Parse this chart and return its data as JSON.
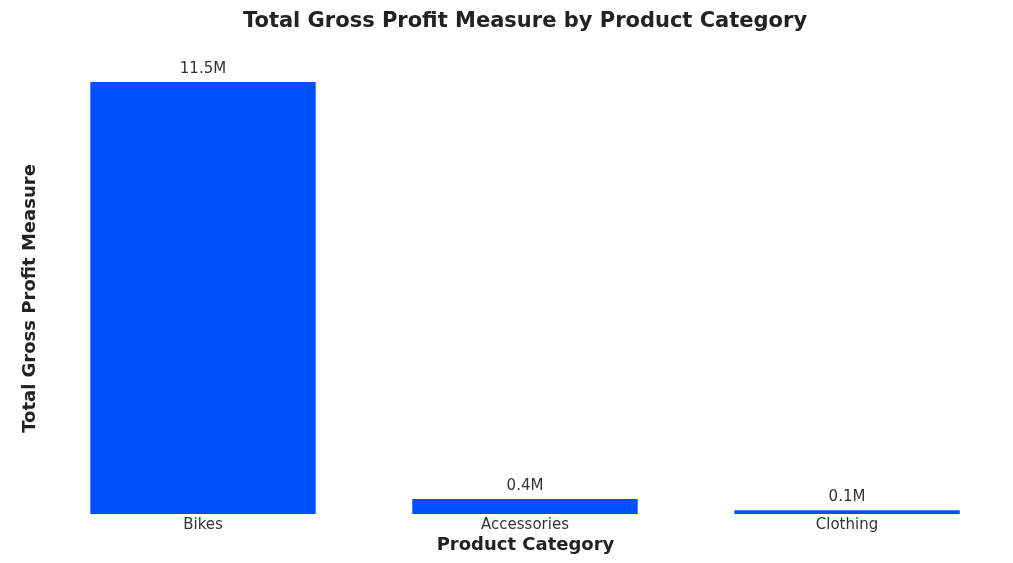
{
  "chart_data": {
    "type": "bar",
    "title": "Total Gross Profit Measure by Product Category",
    "xlabel": "Product Category",
    "ylabel": "Total Gross Profit Measure",
    "categories": [
      "Bikes",
      "Accessories",
      "Clothing"
    ],
    "values": [
      11.5,
      0.4,
      0.1
    ],
    "value_labels": [
      "11.5M",
      "0.4M",
      "0.1M"
    ],
    "color": "#0050ff",
    "grid": false,
    "tick_labels": "x"
  }
}
